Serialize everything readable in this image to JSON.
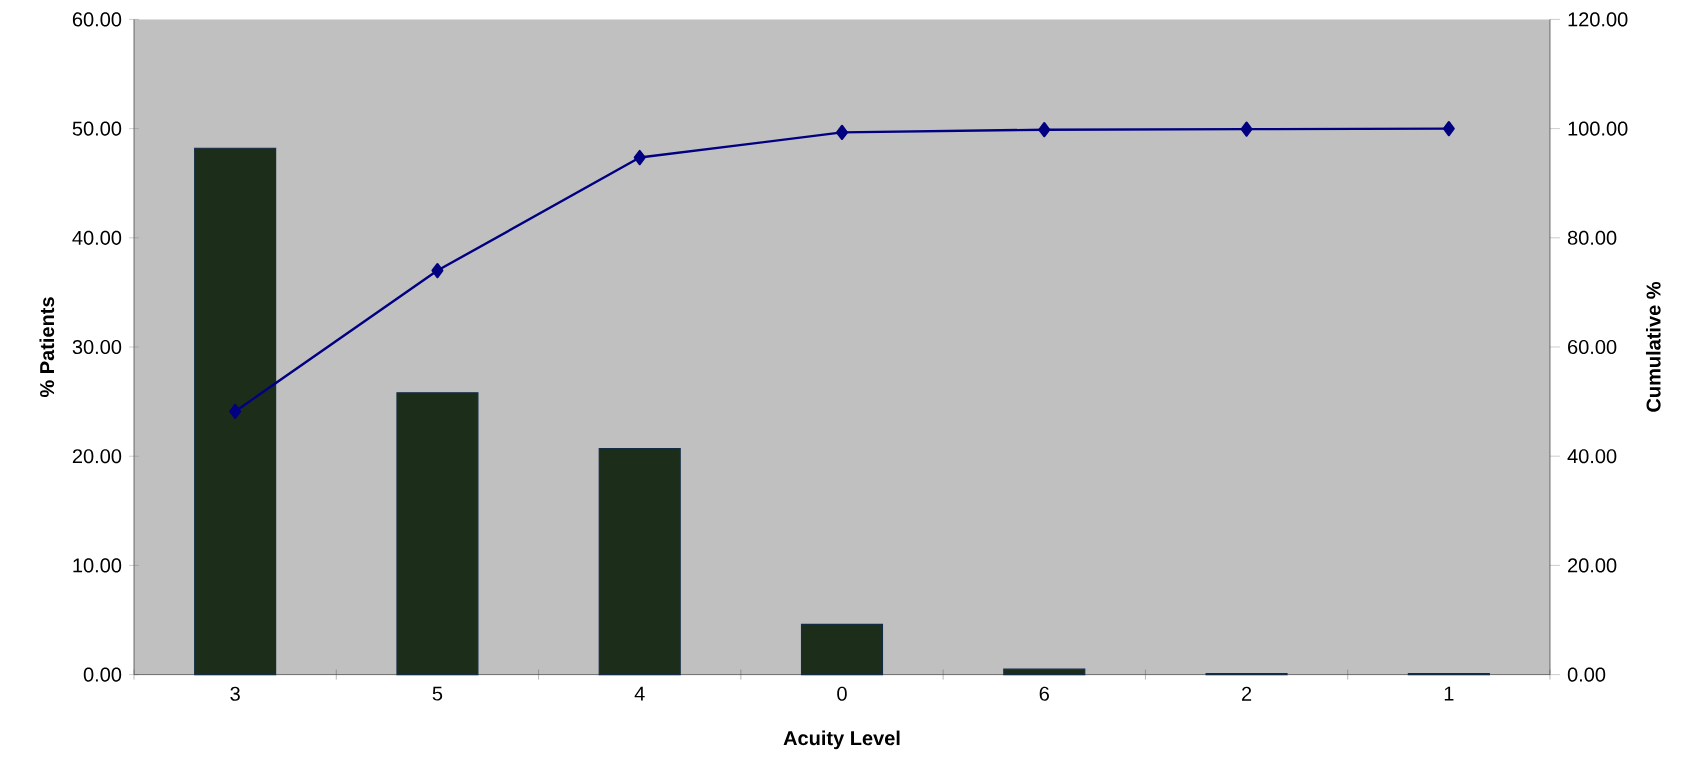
{
  "chart_data": {
    "type": "bar",
    "xlabel": "Acuity Level",
    "ylabel": "% Patients",
    "y2label": "Cumulative %",
    "categories": [
      "3",
      "5",
      "4",
      "0",
      "6",
      "2",
      "1"
    ],
    "ylim": [
      0,
      60
    ],
    "yticks": [
      {
        "value": 0,
        "label": "0.00"
      },
      {
        "value": 10,
        "label": "10.00"
      },
      {
        "value": 20,
        "label": "20.00"
      },
      {
        "value": 30,
        "label": "30.00"
      },
      {
        "value": 40,
        "label": "40.00"
      },
      {
        "value": 50,
        "label": "50.00"
      },
      {
        "value": 60,
        "label": "60.00"
      }
    ],
    "y2lim": [
      0,
      120
    ],
    "y2ticks": [
      {
        "value": 0,
        "label": "0.00"
      },
      {
        "value": 20,
        "label": "20.00"
      },
      {
        "value": 40,
        "label": "40.00"
      },
      {
        "value": 60,
        "label": "60.00"
      },
      {
        "value": 80,
        "label": "80.00"
      },
      {
        "value": 100,
        "label": "100.00"
      },
      {
        "value": 120,
        "label": "120.00"
      }
    ],
    "series": [
      {
        "color": "#1c2e1a",
        "values": [
          48.2,
          25.8,
          20.7,
          4.6,
          0.5,
          0.1,
          0.1
        ]
      },
      {
        "type": "line",
        "axis": "y2",
        "color": "#000080",
        "marker": "diamond",
        "values": [
          48.2,
          74.0,
          94.7,
          99.3,
          99.8,
          99.9,
          100.0
        ]
      }
    ]
  }
}
